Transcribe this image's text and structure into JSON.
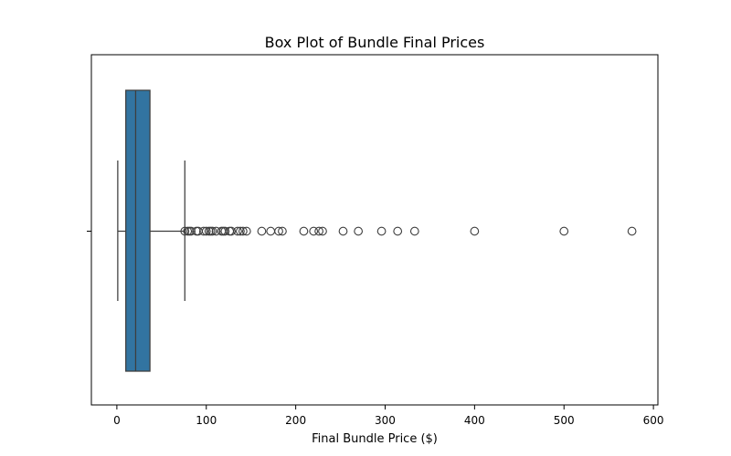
{
  "chart_data": {
    "type": "box",
    "orientation": "horizontal",
    "title": "Box Plot of Bundle Final Prices",
    "xlabel": "Final Bundle Price ($)",
    "ylabel": "",
    "xlim": [
      -28.5,
      605
    ],
    "x_ticks": [
      0,
      100,
      200,
      300,
      400,
      500,
      600
    ],
    "grid": false,
    "legend": "none",
    "box": {
      "whisker_low": 1,
      "q1": 10,
      "median": 21,
      "q3": 37,
      "whisker_high": 76
    },
    "outliers": [
      76,
      79,
      81,
      83,
      89,
      91,
      97,
      100,
      103,
      105,
      107,
      111,
      117,
      119,
      121,
      126,
      128,
      135,
      138,
      141,
      145,
      162,
      172,
      181,
      185,
      209,
      220,
      226,
      230,
      253,
      270,
      296,
      314,
      333,
      400,
      500,
      576
    ]
  },
  "colors": {
    "box_fill": "#3274a1",
    "line": "#3d3d3d",
    "outlier_edge": "#3d3d3d",
    "axes": "#000000"
  }
}
